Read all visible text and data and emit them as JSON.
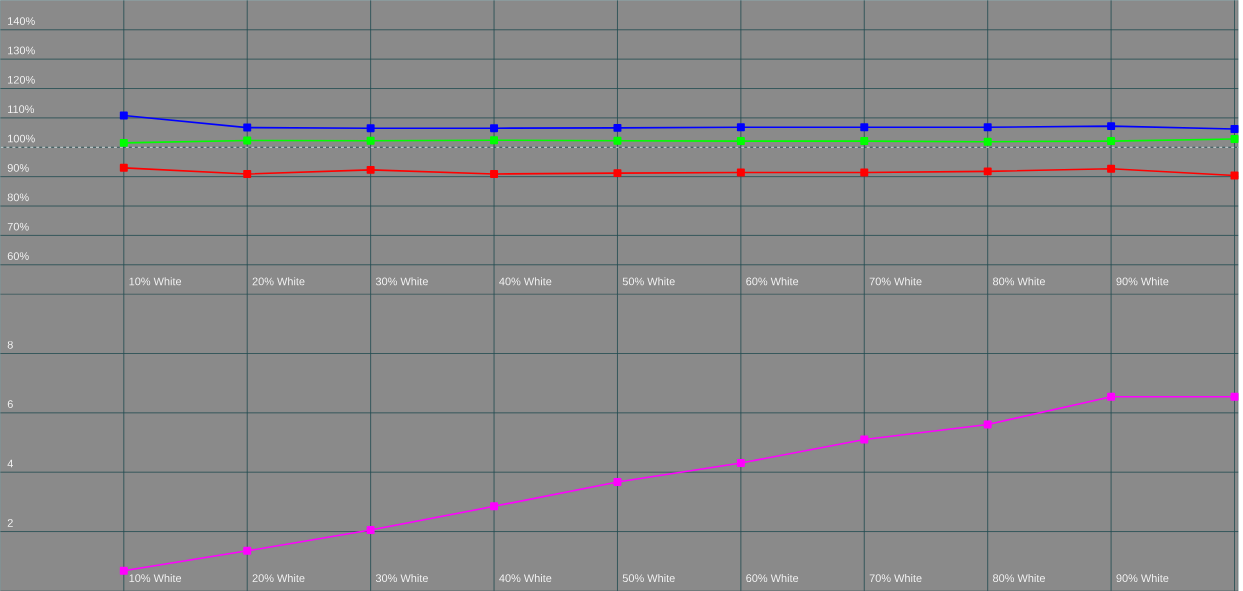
{
  "chart_data": [
    {
      "type": "line",
      "categories": [
        "10% White",
        "20% White",
        "30% White",
        "40% White",
        "50% White",
        "60% White",
        "70% White",
        "80% White",
        "90% White",
        null
      ],
      "series": [
        {
          "color": "#0000ff",
          "values": [
            110.8,
            106.7,
            106.5,
            106.5,
            106.6,
            106.8,
            106.8,
            106.8,
            107.2,
            106.2
          ]
        },
        {
          "color": "#00ff00",
          "values": [
            101.5,
            102.3,
            102.2,
            102.4,
            102.2,
            102.1,
            102.1,
            101.9,
            102.1,
            102.8
          ]
        },
        {
          "color": "#ff0000",
          "values": [
            93.0,
            90.9,
            92.3,
            90.9,
            91.2,
            91.4,
            91.4,
            91.8,
            92.7,
            90.4
          ]
        }
      ],
      "ylim": [
        50,
        150
      ],
      "yticks": [
        {
          "value": 60,
          "label": "60%"
        },
        {
          "value": 70,
          "label": "70%"
        },
        {
          "value": 80,
          "label": "80%"
        },
        {
          "value": 90,
          "label": "90%"
        },
        {
          "value": 100,
          "label": "100%"
        },
        {
          "value": 110,
          "label": "110%"
        },
        {
          "value": 120,
          "label": "120%"
        },
        {
          "value": 130,
          "label": "130%"
        },
        {
          "value": 140,
          "label": "140%"
        }
      ],
      "ref_lines": [
        {
          "axis": "y",
          "value": 100,
          "color": "#ffffff",
          "line_style": "dashed"
        }
      ],
      "marker": "square",
      "grid": true
    },
    {
      "type": "line",
      "categories": [
        "10% White",
        "20% White",
        "30% White",
        "40% White",
        "50% White",
        "60% White",
        "70% White",
        "80% White",
        "90% White",
        null
      ],
      "series": [
        {
          "color": "#ff00ff",
          "values": [
            0.68,
            1.35,
            2.05,
            2.85,
            3.67,
            4.31,
            5.1,
            5.61,
            6.54,
            6.54
          ]
        }
      ],
      "ylim": [
        0,
        10
      ],
      "yticks": [
        2,
        4,
        6,
        8
      ],
      "marker": "square",
      "grid": true
    }
  ]
}
